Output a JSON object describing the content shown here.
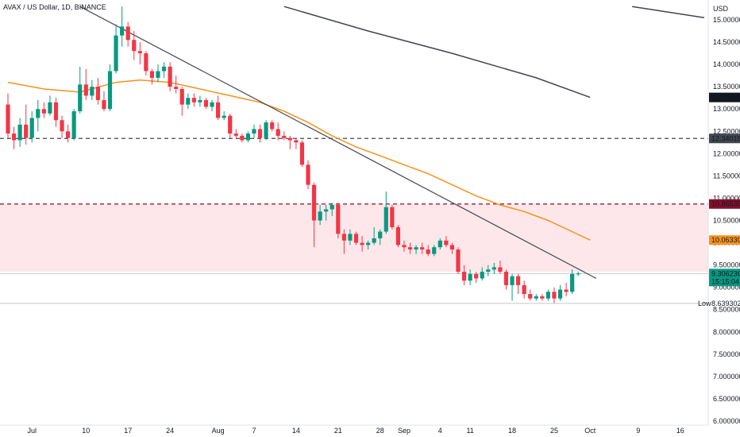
{
  "title": "AVAX / US Dollar, 1D, BINANCE",
  "currency_label": "USD",
  "colors": {
    "up": "#089981",
    "down": "#f23645",
    "ma_fast": "#f7931a",
    "ma_slow": "#434651",
    "trendline": "#434651",
    "support_dash": "#434651",
    "resistance_dash": "#880e2b",
    "zone_fill": "#fde7ea",
    "current_price_bg": "#089981",
    "ma_fast_tag_bg": "#f7931a",
    "ma_slow_tag_bg": "#131722",
    "resistance_tag_bg": "#880e2b",
    "support_tag_bg": "#434651"
  },
  "chart_data": {
    "type": "candlestick",
    "y_axis": {
      "min": 6.0,
      "max": 15.3,
      "ticks": [
        {
          "value": 15.0,
          "label": "15.0000000"
        },
        {
          "value": 14.5,
          "label": "14.5000000"
        },
        {
          "value": 14.0,
          "label": "14.0000000"
        },
        {
          "value": 13.5,
          "label": "13.5000000"
        },
        {
          "value": 13.0,
          "label": "13.0000000"
        },
        {
          "value": 12.5,
          "label": "12.5000000"
        },
        {
          "value": 12.0,
          "label": "12.0000000"
        },
        {
          "value": 11.5,
          "label": "11.5000000"
        },
        {
          "value": 11.0,
          "label": "11.0000000"
        },
        {
          "value": 10.5,
          "label": "10.5000000"
        },
        {
          "value": 10.0,
          "label": "10.0000000"
        },
        {
          "value": 9.5,
          "label": "9.5000000"
        },
        {
          "value": 9.0,
          "label": "9.0000000"
        },
        {
          "value": 8.5,
          "label": "8.5000000"
        },
        {
          "value": 8.0,
          "label": "8.0000000"
        },
        {
          "value": 7.5,
          "label": "7.5000000"
        },
        {
          "value": 7.0,
          "label": "7.0000000"
        },
        {
          "value": 6.5,
          "label": "6.5000000"
        },
        {
          "value": 6.0,
          "label": "6.0000000"
        }
      ]
    },
    "x_axis": {
      "ticks": [
        {
          "idx": 4,
          "label": "Jul"
        },
        {
          "idx": 13,
          "label": "10"
        },
        {
          "idx": 20,
          "label": "17"
        },
        {
          "idx": 27,
          "label": "24"
        },
        {
          "idx": 35,
          "label": "Aug"
        },
        {
          "idx": 41,
          "label": "7"
        },
        {
          "idx": 48,
          "label": "14"
        },
        {
          "idx": 55,
          "label": "21"
        },
        {
          "idx": 62,
          "label": "28"
        },
        {
          "idx": 66,
          "label": "Sep"
        },
        {
          "idx": 72,
          "label": "4"
        },
        {
          "idx": 77,
          "label": "11"
        },
        {
          "idx": 84,
          "label": "18"
        },
        {
          "idx": 91,
          "label": "25"
        },
        {
          "idx": 97,
          "label": "Oct"
        },
        {
          "idx": 105,
          "label": "9"
        },
        {
          "idx": 112,
          "label": "16"
        }
      ]
    },
    "candles": [
      {
        "o": 13.1,
        "h": 13.35,
        "l": 12.35,
        "c": 12.45
      },
      {
        "o": 12.45,
        "h": 12.6,
        "l": 12.1,
        "c": 12.3
      },
      {
        "o": 12.3,
        "h": 12.8,
        "l": 12.15,
        "c": 12.65
      },
      {
        "o": 12.65,
        "h": 13.1,
        "l": 12.2,
        "c": 12.35
      },
      {
        "o": 12.35,
        "h": 12.95,
        "l": 12.25,
        "c": 12.8
      },
      {
        "o": 12.8,
        "h": 13.2,
        "l": 12.5,
        "c": 13.0
      },
      {
        "o": 13.0,
        "h": 13.15,
        "l": 12.8,
        "c": 12.9
      },
      {
        "o": 12.9,
        "h": 13.3,
        "l": 12.85,
        "c": 13.15
      },
      {
        "o": 13.15,
        "h": 13.25,
        "l": 12.6,
        "c": 12.75
      },
      {
        "o": 12.75,
        "h": 12.85,
        "l": 12.35,
        "c": 12.5
      },
      {
        "o": 12.5,
        "h": 12.65,
        "l": 12.25,
        "c": 12.35
      },
      {
        "o": 12.35,
        "h": 13.0,
        "l": 12.3,
        "c": 12.95
      },
      {
        "o": 12.95,
        "h": 13.95,
        "l": 12.9,
        "c": 13.55
      },
      {
        "o": 13.55,
        "h": 13.9,
        "l": 13.2,
        "c": 13.3
      },
      {
        "o": 13.3,
        "h": 13.65,
        "l": 13.2,
        "c": 13.5
      },
      {
        "o": 13.5,
        "h": 13.7,
        "l": 13.1,
        "c": 13.2
      },
      {
        "o": 13.2,
        "h": 13.4,
        "l": 12.95,
        "c": 13.0
      },
      {
        "o": 13.0,
        "h": 14.0,
        "l": 12.95,
        "c": 13.85
      },
      {
        "o": 13.85,
        "h": 14.9,
        "l": 13.8,
        "c": 14.65
      },
      {
        "o": 14.65,
        "h": 15.3,
        "l": 14.4,
        "c": 14.85
      },
      {
        "o": 14.85,
        "h": 14.95,
        "l": 14.4,
        "c": 14.55
      },
      {
        "o": 14.55,
        "h": 14.75,
        "l": 14.1,
        "c": 14.3
      },
      {
        "o": 14.3,
        "h": 14.5,
        "l": 14.0,
        "c": 14.25
      },
      {
        "o": 14.25,
        "h": 14.3,
        "l": 13.75,
        "c": 13.85
      },
      {
        "o": 13.85,
        "h": 13.9,
        "l": 13.55,
        "c": 13.7
      },
      {
        "o": 13.7,
        "h": 14.0,
        "l": 13.6,
        "c": 13.85
      },
      {
        "o": 13.85,
        "h": 14.05,
        "l": 13.7,
        "c": 13.95
      },
      {
        "o": 13.95,
        "h": 14.05,
        "l": 13.4,
        "c": 13.5
      },
      {
        "o": 13.5,
        "h": 13.75,
        "l": 13.35,
        "c": 13.45
      },
      {
        "o": 13.45,
        "h": 13.5,
        "l": 12.85,
        "c": 13.1
      },
      {
        "o": 13.1,
        "h": 13.35,
        "l": 13.0,
        "c": 13.25
      },
      {
        "o": 13.25,
        "h": 13.35,
        "l": 13.05,
        "c": 13.15
      },
      {
        "o": 13.15,
        "h": 13.3,
        "l": 13.05,
        "c": 13.2
      },
      {
        "o": 13.2,
        "h": 13.25,
        "l": 13.0,
        "c": 13.05
      },
      {
        "o": 13.05,
        "h": 13.2,
        "l": 12.95,
        "c": 13.15
      },
      {
        "o": 13.15,
        "h": 13.3,
        "l": 12.75,
        "c": 12.8
      },
      {
        "o": 12.8,
        "h": 12.95,
        "l": 12.75,
        "c": 12.85
      },
      {
        "o": 12.85,
        "h": 12.9,
        "l": 12.35,
        "c": 12.45
      },
      {
        "o": 12.45,
        "h": 12.55,
        "l": 12.35,
        "c": 12.4
      },
      {
        "o": 12.4,
        "h": 12.45,
        "l": 12.25,
        "c": 12.3
      },
      {
        "o": 12.3,
        "h": 12.5,
        "l": 12.25,
        "c": 12.45
      },
      {
        "o": 12.45,
        "h": 12.65,
        "l": 12.35,
        "c": 12.55
      },
      {
        "o": 12.55,
        "h": 12.65,
        "l": 12.25,
        "c": 12.35
      },
      {
        "o": 12.35,
        "h": 12.75,
        "l": 12.3,
        "c": 12.7
      },
      {
        "o": 12.7,
        "h": 12.75,
        "l": 12.5,
        "c": 12.55
      },
      {
        "o": 12.55,
        "h": 12.7,
        "l": 12.3,
        "c": 12.4
      },
      {
        "o": 12.4,
        "h": 12.5,
        "l": 12.3,
        "c": 12.35
      },
      {
        "o": 12.35,
        "h": 12.4,
        "l": 12.1,
        "c": 12.3
      },
      {
        "o": 12.3,
        "h": 12.35,
        "l": 12.1,
        "c": 12.25
      },
      {
        "o": 12.25,
        "h": 12.3,
        "l": 11.7,
        "c": 11.75
      },
      {
        "o": 11.75,
        "h": 11.85,
        "l": 11.2,
        "c": 11.3
      },
      {
        "o": 11.3,
        "h": 11.35,
        "l": 9.9,
        "c": 10.5
      },
      {
        "o": 10.5,
        "h": 10.85,
        "l": 10.4,
        "c": 10.7
      },
      {
        "o": 10.7,
        "h": 10.85,
        "l": 10.5,
        "c": 10.75
      },
      {
        "o": 10.75,
        "h": 10.9,
        "l": 10.6,
        "c": 10.85
      },
      {
        "o": 10.85,
        "h": 10.9,
        "l": 10.1,
        "c": 10.2
      },
      {
        "o": 10.2,
        "h": 10.3,
        "l": 9.75,
        "c": 10.05
      },
      {
        "o": 10.05,
        "h": 10.3,
        "l": 9.95,
        "c": 10.2
      },
      {
        "o": 10.2,
        "h": 10.25,
        "l": 9.95,
        "c": 10.0
      },
      {
        "o": 10.0,
        "h": 10.15,
        "l": 9.8,
        "c": 9.95
      },
      {
        "o": 9.95,
        "h": 10.05,
        "l": 9.85,
        "c": 10.0
      },
      {
        "o": 10.0,
        "h": 10.35,
        "l": 9.95,
        "c": 10.1
      },
      {
        "o": 10.1,
        "h": 10.3,
        "l": 9.95,
        "c": 10.25
      },
      {
        "o": 10.25,
        "h": 11.15,
        "l": 10.2,
        "c": 10.8
      },
      {
        "o": 10.8,
        "h": 10.85,
        "l": 10.3,
        "c": 10.35
      },
      {
        "o": 10.35,
        "h": 10.4,
        "l": 9.9,
        "c": 9.95
      },
      {
        "o": 9.95,
        "h": 10.05,
        "l": 9.8,
        "c": 9.9
      },
      {
        "o": 9.9,
        "h": 10.0,
        "l": 9.75,
        "c": 9.85
      },
      {
        "o": 9.85,
        "h": 9.95,
        "l": 9.75,
        "c": 9.9
      },
      {
        "o": 9.9,
        "h": 10.0,
        "l": 9.75,
        "c": 9.85
      },
      {
        "o": 9.85,
        "h": 9.95,
        "l": 9.7,
        "c": 9.75
      },
      {
        "o": 9.75,
        "h": 9.95,
        "l": 9.7,
        "c": 9.9
      },
      {
        "o": 9.9,
        "h": 10.1,
        "l": 9.85,
        "c": 10.05
      },
      {
        "o": 10.05,
        "h": 10.15,
        "l": 9.9,
        "c": 9.95
      },
      {
        "o": 9.95,
        "h": 10.0,
        "l": 9.75,
        "c": 9.85
      },
      {
        "o": 9.85,
        "h": 9.9,
        "l": 9.3,
        "c": 9.35
      },
      {
        "o": 9.35,
        "h": 9.5,
        "l": 9.05,
        "c": 9.15
      },
      {
        "o": 9.15,
        "h": 9.4,
        "l": 9.05,
        "c": 9.3
      },
      {
        "o": 9.3,
        "h": 9.35,
        "l": 9.1,
        "c": 9.2
      },
      {
        "o": 9.2,
        "h": 9.45,
        "l": 9.15,
        "c": 9.35
      },
      {
        "o": 9.35,
        "h": 9.5,
        "l": 9.25,
        "c": 9.4
      },
      {
        "o": 9.4,
        "h": 9.55,
        "l": 9.3,
        "c": 9.45
      },
      {
        "o": 9.45,
        "h": 9.6,
        "l": 9.3,
        "c": 9.35
      },
      {
        "o": 9.35,
        "h": 9.4,
        "l": 8.95,
        "c": 9.05
      },
      {
        "o": 9.05,
        "h": 9.3,
        "l": 8.7,
        "c": 9.25
      },
      {
        "o": 9.25,
        "h": 9.3,
        "l": 8.85,
        "c": 9.05
      },
      {
        "o": 9.05,
        "h": 9.15,
        "l": 8.75,
        "c": 8.85
      },
      {
        "o": 8.85,
        "h": 8.95,
        "l": 8.7,
        "c": 8.75
      },
      {
        "o": 8.75,
        "h": 8.85,
        "l": 8.7,
        "c": 8.8
      },
      {
        "o": 8.8,
        "h": 8.85,
        "l": 8.7,
        "c": 8.75
      },
      {
        "o": 8.75,
        "h": 8.95,
        "l": 8.7,
        "c": 8.9
      },
      {
        "o": 8.9,
        "h": 9.0,
        "l": 8.65,
        "c": 8.75
      },
      {
        "o": 8.75,
        "h": 9.05,
        "l": 8.7,
        "c": 8.95
      },
      {
        "o": 8.95,
        "h": 9.1,
        "l": 8.8,
        "c": 8.9
      },
      {
        "o": 8.9,
        "h": 9.4,
        "l": 8.85,
        "c": 9.3
      },
      {
        "o": 9.3,
        "h": 9.35,
        "l": 9.25,
        "c": 9.31
      }
    ],
    "ma_fast": [
      [
        0,
        13.6
      ],
      [
        6,
        13.45
      ],
      [
        12,
        13.38
      ],
      [
        18,
        13.6
      ],
      [
        22,
        13.65
      ],
      [
        27,
        13.6
      ],
      [
        32,
        13.45
      ],
      [
        37,
        13.3
      ],
      [
        42,
        13.15
      ],
      [
        46,
        12.95
      ],
      [
        50,
        12.7
      ],
      [
        54,
        12.4
      ],
      [
        58,
        12.15
      ],
      [
        62,
        11.95
      ],
      [
        66,
        11.75
      ],
      [
        70,
        11.55
      ],
      [
        74,
        11.3
      ],
      [
        78,
        11.05
      ],
      [
        82,
        10.85
      ],
      [
        86,
        10.7
      ],
      [
        90,
        10.5
      ],
      [
        94,
        10.25
      ],
      [
        97,
        10.06
      ]
    ],
    "ma_slow": [
      [
        46,
        15.3
      ],
      [
        60,
        14.75
      ],
      [
        74,
        14.25
      ],
      [
        88,
        13.7
      ],
      [
        97,
        13.26
      ]
    ],
    "ma_slow_tail": [
      [
        104,
        15.3
      ],
      [
        116,
        15.05
      ]
    ],
    "trendline": [
      [
        12,
        15.3
      ],
      [
        98,
        9.2
      ]
    ],
    "support_level": 12.34,
    "resistance_level": 10.87,
    "zone": [
      9.35,
      10.87
    ],
    "low_level": 8.64,
    "current_price": 9.31,
    "tags": {
      "ma_slow": "13.2624140",
      "support": "12.3401533",
      "resistance": "10.8653925",
      "ma_fast": "10.0633055",
      "current_price": "9.3062363",
      "countdown": "15:15:04",
      "low_label": "Low",
      "low_value": "8.6393023"
    }
  }
}
